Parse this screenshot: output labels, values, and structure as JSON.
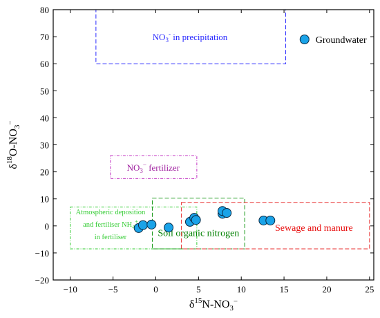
{
  "chart_data": {
    "type": "scatter",
    "xlim": [
      -12,
      25.5
    ],
    "ylim": [
      -20,
      80
    ],
    "x_ticks": [
      -10,
      -5,
      0,
      5,
      10,
      15,
      20,
      25
    ],
    "y_ticks": [
      -20,
      -10,
      0,
      10,
      20,
      30,
      40,
      50,
      60,
      70,
      80
    ],
    "x_tick_labels": [
      "−10",
      "−5",
      "0",
      "5",
      "10",
      "15",
      "20",
      "25"
    ],
    "y_tick_labels": [
      "−20",
      "−10",
      "0",
      "10",
      "20",
      "30",
      "40",
      "50",
      "60",
      "70",
      "80"
    ],
    "xlabel": {
      "prefix": "δ",
      "sup": "15",
      "main": "N-NO",
      "sub": "3",
      "sup2": "−"
    },
    "ylabel": {
      "prefix": "δ",
      "sup": "18",
      "main": "O-NO",
      "sub": "3",
      "sup2": "−"
    },
    "grid": false,
    "legend": {
      "position": "top-right",
      "label": "Groundwater",
      "x": 17.4,
      "y": 69
    },
    "marker_color": "#1aa3e8",
    "series": [
      {
        "name": "Groundwater",
        "points": [
          {
            "x": -2.0,
            "y": -0.8
          },
          {
            "x": -1.5,
            "y": 0.3
          },
          {
            "x": -0.5,
            "y": 0.5
          },
          {
            "x": 1.5,
            "y": -0.6
          },
          {
            "x": 4.0,
            "y": 1.5
          },
          {
            "x": 4.5,
            "y": 3.0
          },
          {
            "x": 4.7,
            "y": 2.2
          },
          {
            "x": 7.8,
            "y": 4.5
          },
          {
            "x": 7.8,
            "y": 5.5
          },
          {
            "x": 8.3,
            "y": 4.8
          },
          {
            "x": 12.6,
            "y": 2.0
          },
          {
            "x": 13.4,
            "y": 2.0
          }
        ]
      }
    ],
    "regions": [
      {
        "name": "precipitation",
        "label_main": "NO",
        "label_sub": "3",
        "label_sup": "-",
        "label_rest": " in precipitation",
        "x0": -7,
        "x1": 15.2,
        "y0": 60,
        "y1": 80,
        "label_x": 4,
        "label_y": 70,
        "color": "#2a2aff",
        "label_color": "#2a2aff"
      },
      {
        "name": "fertilizer",
        "label_main": "NO",
        "label_sub": "3",
        "label_sup": "−",
        "label_rest": " fertilizer",
        "x0": -5.3,
        "x1": 4.8,
        "y0": 17.5,
        "y1": 26,
        "label_x": -0.3,
        "label_y": 21.7,
        "color": "#c030c0",
        "label_color": "#a020a0"
      },
      {
        "name": "atmospheric",
        "label_lines": [
          "Atmospheric deposition",
          "and fertiliser NH",
          "in fertiliser"
        ],
        "label_sub": "4",
        "label_sup": "+",
        "x0": -10,
        "x1": 4.8,
        "y0": -8.5,
        "y1": 7,
        "label_x": -5.3,
        "color": "#33cc33",
        "label_color": "#33cc33"
      },
      {
        "name": "soil",
        "label": "Soil organic nitrogen",
        "x0": -0.4,
        "x1": 10.4,
        "y0": -8.5,
        "y1": 10.3,
        "label_x": 5.0,
        "label_y": -2.5,
        "color": "#1a9a1a",
        "label_color": "#008000"
      },
      {
        "name": "sewage",
        "label": "Sewage and manure",
        "x0": 3,
        "x1": 25,
        "y0": -8.5,
        "y1": 8.7,
        "label_x": 18.5,
        "label_y": -0.6,
        "color": "#e83030",
        "label_color": "#e81010"
      }
    ]
  }
}
